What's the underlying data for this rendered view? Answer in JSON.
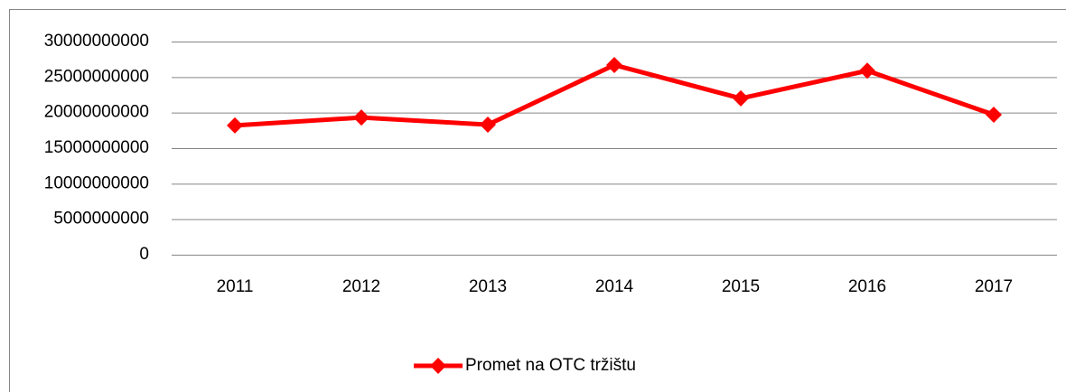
{
  "chart_data": {
    "type": "line",
    "categories": [
      "2011",
      "2012",
      "2013",
      "2014",
      "2015",
      "2016",
      "2017"
    ],
    "series": [
      {
        "name": "Promet na OTC tržištu",
        "color": "#ff0000",
        "values": [
          18200000000,
          19300000000,
          18300000000,
          26700000000,
          22000000000,
          25900000000,
          19700000000
        ]
      }
    ],
    "ylim": [
      0,
      30000000000
    ],
    "yticks": [
      0,
      5000000000,
      10000000000,
      15000000000,
      20000000000,
      25000000000,
      30000000000
    ],
    "grid": true,
    "legend": "bottom"
  }
}
